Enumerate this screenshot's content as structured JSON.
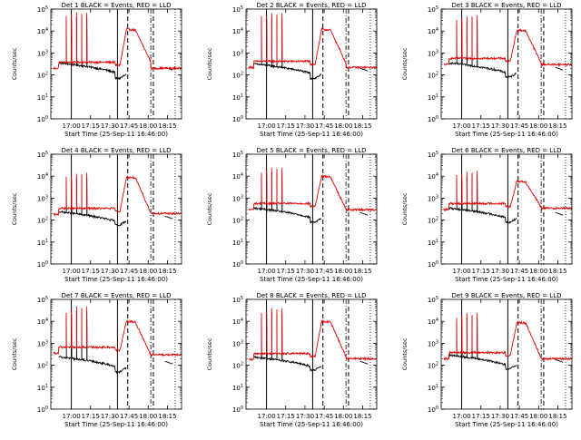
{
  "chart_data": [
    {
      "type": "line",
      "title": "Det 1 BLACK = Events, RED = LLD",
      "xlabel": "Start Time (25-Sep-11 16:46:00)",
      "ylabel": "Counts/sec",
      "x_ticks": [
        "17:00",
        "17:15",
        "17:30",
        "17:45",
        "18:00",
        "18:15"
      ],
      "y_ticks": [
        "10^0",
        "10^1",
        "10^2",
        "10^3",
        "10^4",
        "10^5"
      ],
      "yscale": "log",
      "ylim": [
        1,
        100000
      ],
      "red_base_before": 200,
      "red_base_after": 200,
      "black_base": 220,
      "black_dip": 70,
      "spikes": [
        30000,
        35000,
        45000,
        38000,
        42000
      ],
      "red_peak": 12000,
      "red_post": 400,
      "series": [
        {
          "name": "Events",
          "color": "#000000"
        },
        {
          "name": "LLD",
          "color": "#e00000"
        }
      ]
    },
    {
      "type": "line",
      "title": "Det 2 BLACK = Events, RED = LLD",
      "xlabel": "Start Time (25-Sep-11 16:46:00)",
      "ylabel": "Counts/sec",
      "x_ticks": [
        "17:00",
        "17:15",
        "17:30",
        "17:45",
        "18:00",
        "18:15"
      ],
      "y_ticks": [
        "10^0",
        "10^1",
        "10^2",
        "10^3",
        "10^4",
        "10^5"
      ],
      "yscale": "log",
      "ylim": [
        1,
        100000
      ],
      "red_base_before": 220,
      "red_base_after": 220,
      "black_base": 200,
      "black_dip": 70,
      "spikes": [
        30000,
        32000,
        40000,
        36000,
        40000
      ],
      "red_peak": 12000,
      "red_post": 350,
      "series": [
        {
          "name": "Events",
          "color": "#000000"
        },
        {
          "name": "LLD",
          "color": "#e00000"
        }
      ]
    },
    {
      "type": "line",
      "title": "Det 3 BLACK = Events, RED = LLD",
      "xlabel": "Start Time (25-Sep-11 16:46:00)",
      "ylabel": "Counts/sec",
      "x_ticks": [
        "17:00",
        "17:15",
        "17:30",
        "17:45",
        "18:00",
        "18:15"
      ],
      "y_ticks": [
        "10^0",
        "10^1",
        "10^2",
        "10^3",
        "10^4",
        "10^5"
      ],
      "yscale": "log",
      "ylim": [
        1,
        100000
      ],
      "red_base_before": 300,
      "red_base_after": 300,
      "black_base": 220,
      "black_dip": 80,
      "spikes": [
        20000,
        25000,
        30000,
        28000,
        32000
      ],
      "red_peak": 11000,
      "red_post": 350,
      "series": [
        {
          "name": "Events",
          "color": "#000000"
        },
        {
          "name": "LLD",
          "color": "#e00000"
        }
      ]
    },
    {
      "type": "line",
      "title": "Det 4 BLACK = Events, RED = LLD",
      "xlabel": "Start Time (25-Sep-11 16:46:00)",
      "ylabel": "Counts/sec",
      "x_ticks": [
        "17:00",
        "17:15",
        "17:30",
        "17:45",
        "18:00",
        "18:15"
      ],
      "y_ticks": [
        "10^0",
        "10^1",
        "10^2",
        "10^3",
        "10^4",
        "10^5"
      ],
      "yscale": "log",
      "ylim": [
        1,
        100000
      ],
      "red_base_before": 180,
      "red_base_after": 200,
      "black_base": 150,
      "black_dip": 60,
      "spikes": [
        6000,
        7000,
        8000,
        7500,
        9000
      ],
      "red_peak": 9000,
      "red_post": 220,
      "series": [
        {
          "name": "Events",
          "color": "#000000"
        },
        {
          "name": "LLD",
          "color": "#e00000"
        }
      ]
    },
    {
      "type": "line",
      "title": "Det 5 BLACK = Events, RED = LLD",
      "xlabel": "Start Time (25-Sep-11 16:46:00)",
      "ylabel": "Counts/sec",
      "x_ticks": [
        "17:00",
        "17:15",
        "17:30",
        "17:45",
        "18:00",
        "18:15"
      ],
      "y_ticks": [
        "10^0",
        "10^1",
        "10^2",
        "10^3",
        "10^4",
        "10^5"
      ],
      "yscale": "log",
      "ylim": [
        1,
        100000
      ],
      "red_base_before": 300,
      "red_base_after": 300,
      "black_base": 220,
      "black_dip": 80,
      "spikes": [
        9000,
        12000,
        15000,
        14000,
        15000
      ],
      "red_peak": 10000,
      "red_post": 330,
      "series": [
        {
          "name": "Events",
          "color": "#000000"
        },
        {
          "name": "LLD",
          "color": "#e00000"
        }
      ]
    },
    {
      "type": "line",
      "title": "Det 6 BLACK = Events, RED = LLD",
      "xlabel": "Start Time (25-Sep-11 16:46:00)",
      "ylabel": "Counts/sec",
      "x_ticks": [
        "17:00",
        "17:15",
        "17:30",
        "17:45",
        "18:00",
        "18:15"
      ],
      "y_ticks": [
        "10^0",
        "10^1",
        "10^2",
        "10^3",
        "10^4",
        "10^5"
      ],
      "yscale": "log",
      "ylim": [
        1,
        100000
      ],
      "red_base_before": 300,
      "red_base_after": 350,
      "black_base": 220,
      "black_dip": 80,
      "spikes": [
        7000,
        8000,
        10000,
        9000,
        11000
      ],
      "red_peak": 6000,
      "red_post": 380,
      "series": [
        {
          "name": "Events",
          "color": "#000000"
        },
        {
          "name": "LLD",
          "color": "#e00000"
        }
      ]
    },
    {
      "type": "line",
      "title": "Det 7 BLACK = Events, RED = LLD",
      "xlabel": "Start Time (25-Sep-11 16:46:00)",
      "ylabel": "Counts/sec",
      "x_ticks": [
        "17:00",
        "17:15",
        "17:30",
        "17:45",
        "18:00",
        "18:15"
      ],
      "y_ticks": [
        "10^0",
        "10^1",
        "10^2",
        "10^3",
        "10^4",
        "10^5"
      ],
      "yscale": "log",
      "ylim": [
        1,
        100000
      ],
      "red_base_before": 350,
      "red_base_after": 300,
      "black_base": 150,
      "black_dip": 50,
      "spikes": [
        15000,
        20000,
        30000,
        25000,
        30000
      ],
      "red_peak": 10000,
      "red_post": 300,
      "series": [
        {
          "name": "Events",
          "color": "#000000"
        },
        {
          "name": "LLD",
          "color": "#e00000"
        }
      ]
    },
    {
      "type": "line",
      "title": "Det 8 BLACK = Events, RED = LLD",
      "xlabel": "Start Time (25-Sep-11 16:46:00)",
      "ylabel": "Counts/sec",
      "x_ticks": [
        "17:00",
        "17:15",
        "17:30",
        "17:45",
        "18:00",
        "18:15"
      ],
      "y_ticks": [
        "10^0",
        "10^1",
        "10^2",
        "10^3",
        "10^4",
        "10^5"
      ],
      "yscale": "log",
      "ylim": [
        1,
        100000
      ],
      "red_base_before": 180,
      "red_base_after": 200,
      "black_base": 150,
      "black_dip": 60,
      "spikes": [
        15000,
        18000,
        25000,
        22000,
        25000
      ],
      "red_peak": 10000,
      "red_post": 250,
      "series": [
        {
          "name": "Events",
          "color": "#000000"
        },
        {
          "name": "LLD",
          "color": "#e00000"
        }
      ]
    },
    {
      "type": "line",
      "title": "Det 9 BLACK = Events, RED = LLD",
      "xlabel": "Start Time (25-Sep-11 16:46:00)",
      "ylabel": "Counts/sec",
      "x_ticks": [
        "17:00",
        "17:15",
        "17:30",
        "17:45",
        "18:00",
        "18:15"
      ],
      "y_ticks": [
        "10^0",
        "10^1",
        "10^2",
        "10^3",
        "10^4",
        "10^5"
      ],
      "yscale": "log",
      "ylim": [
        1,
        100000
      ],
      "red_base_before": 200,
      "red_base_after": 200,
      "black_base": 180,
      "black_dip": 70,
      "spikes": [
        9000,
        12000,
        15000,
        12000,
        15000
      ],
      "red_peak": 9000,
      "red_post": 220,
      "series": [
        {
          "name": "Events",
          "color": "#000000"
        },
        {
          "name": "LLD",
          "color": "#e00000"
        }
      ]
    }
  ]
}
